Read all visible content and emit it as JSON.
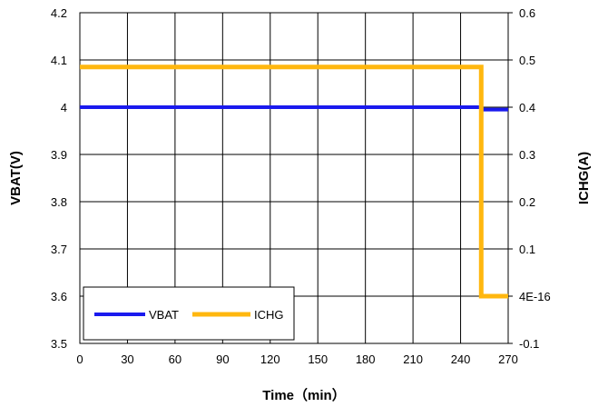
{
  "chart_data": {
    "type": "line",
    "xlabel": "Time（min）",
    "ylabel_left": "VBAT(V)",
    "ylabel_right": "ICHG(A)",
    "xlim": [
      0,
      270
    ],
    "ylim_left": [
      3.5,
      4.2
    ],
    "ylim_right": [
      -0.1,
      0.6
    ],
    "x_ticks": [
      "0",
      "30",
      "60",
      "90",
      "120",
      "150",
      "180",
      "210",
      "240",
      "270"
    ],
    "y_left_ticks": [
      "3.5",
      "3.6",
      "3.7",
      "3.8",
      "3.9",
      "4",
      "4.1",
      "4.2"
    ],
    "y_right_ticks": [
      "-0.1",
      "4E-16",
      "0.1",
      "0.2",
      "0.3",
      "0.4",
      "0.5",
      "0.6"
    ],
    "grid": true,
    "legend_position": "bottom-left",
    "series": [
      {
        "name": "VBAT",
        "axis": "left",
        "color": "#1a1aee",
        "x": [
          0,
          253,
          253,
          270
        ],
        "y": [
          4.0,
          4.0,
          3.995,
          3.995
        ]
      },
      {
        "name": "ICHG",
        "axis": "right",
        "color": "#ffb70f",
        "x": [
          0,
          253,
          253,
          270
        ],
        "y": [
          0.485,
          0.485,
          0.0,
          0.0
        ]
      }
    ]
  }
}
